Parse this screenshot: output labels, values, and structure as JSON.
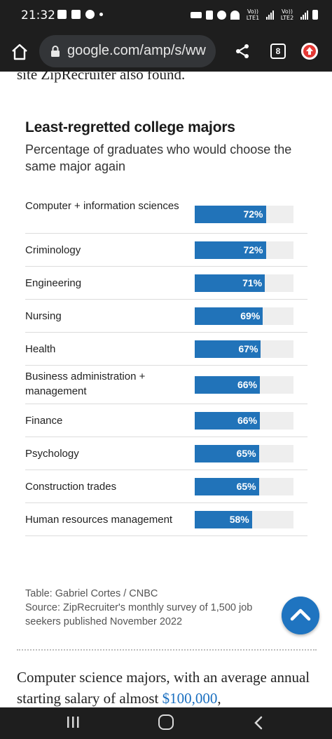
{
  "status_bar": {
    "time": "21:32",
    "net1": "Vo)) LTE1",
    "net2": "Vo)) LTE2"
  },
  "browser": {
    "url": "google.com/amp/s/ww",
    "tab_count": "8",
    "icons": [
      "home-icon",
      "lock-icon",
      "share-icon",
      "tabs-icon",
      "update-icon"
    ]
  },
  "article": {
    "prev_text": "site ZipRecruiter also found.",
    "next_text_pre": "Computer science majors, with an average annual starting salary of almost ",
    "next_text_link": "$100,000",
    "next_text_post": ","
  },
  "chart_data": {
    "type": "bar",
    "title": "Least-regretted college majors",
    "subtitle": "Percentage of graduates who would choose the same major again",
    "categories": [
      "Computer + information sciences",
      "Criminology",
      "Engineering",
      "Nursing",
      "Health",
      "Business administration + management",
      "Finance",
      "Psychology",
      "Construction trades",
      "Human resources management"
    ],
    "values": [
      72,
      72,
      71,
      69,
      67,
      66,
      66,
      65,
      65,
      58
    ],
    "value_labels": [
      "72%",
      "72%",
      "71%",
      "69%",
      "67%",
      "66%",
      "66%",
      "65%",
      "65%",
      "58%"
    ],
    "ylim": [
      0,
      100
    ],
    "bar_color": "#2173b9",
    "track_color": "#eeeeee"
  },
  "credit": {
    "table_credit": "Table: Gabriel Cortes / CNBC",
    "source": "Source: ZipRecruiter's monthly survey of 1,500 job seekers published November 2022"
  },
  "colors": {
    "accent": "#1f74c0",
    "chrome": "#1e1e1e"
  }
}
